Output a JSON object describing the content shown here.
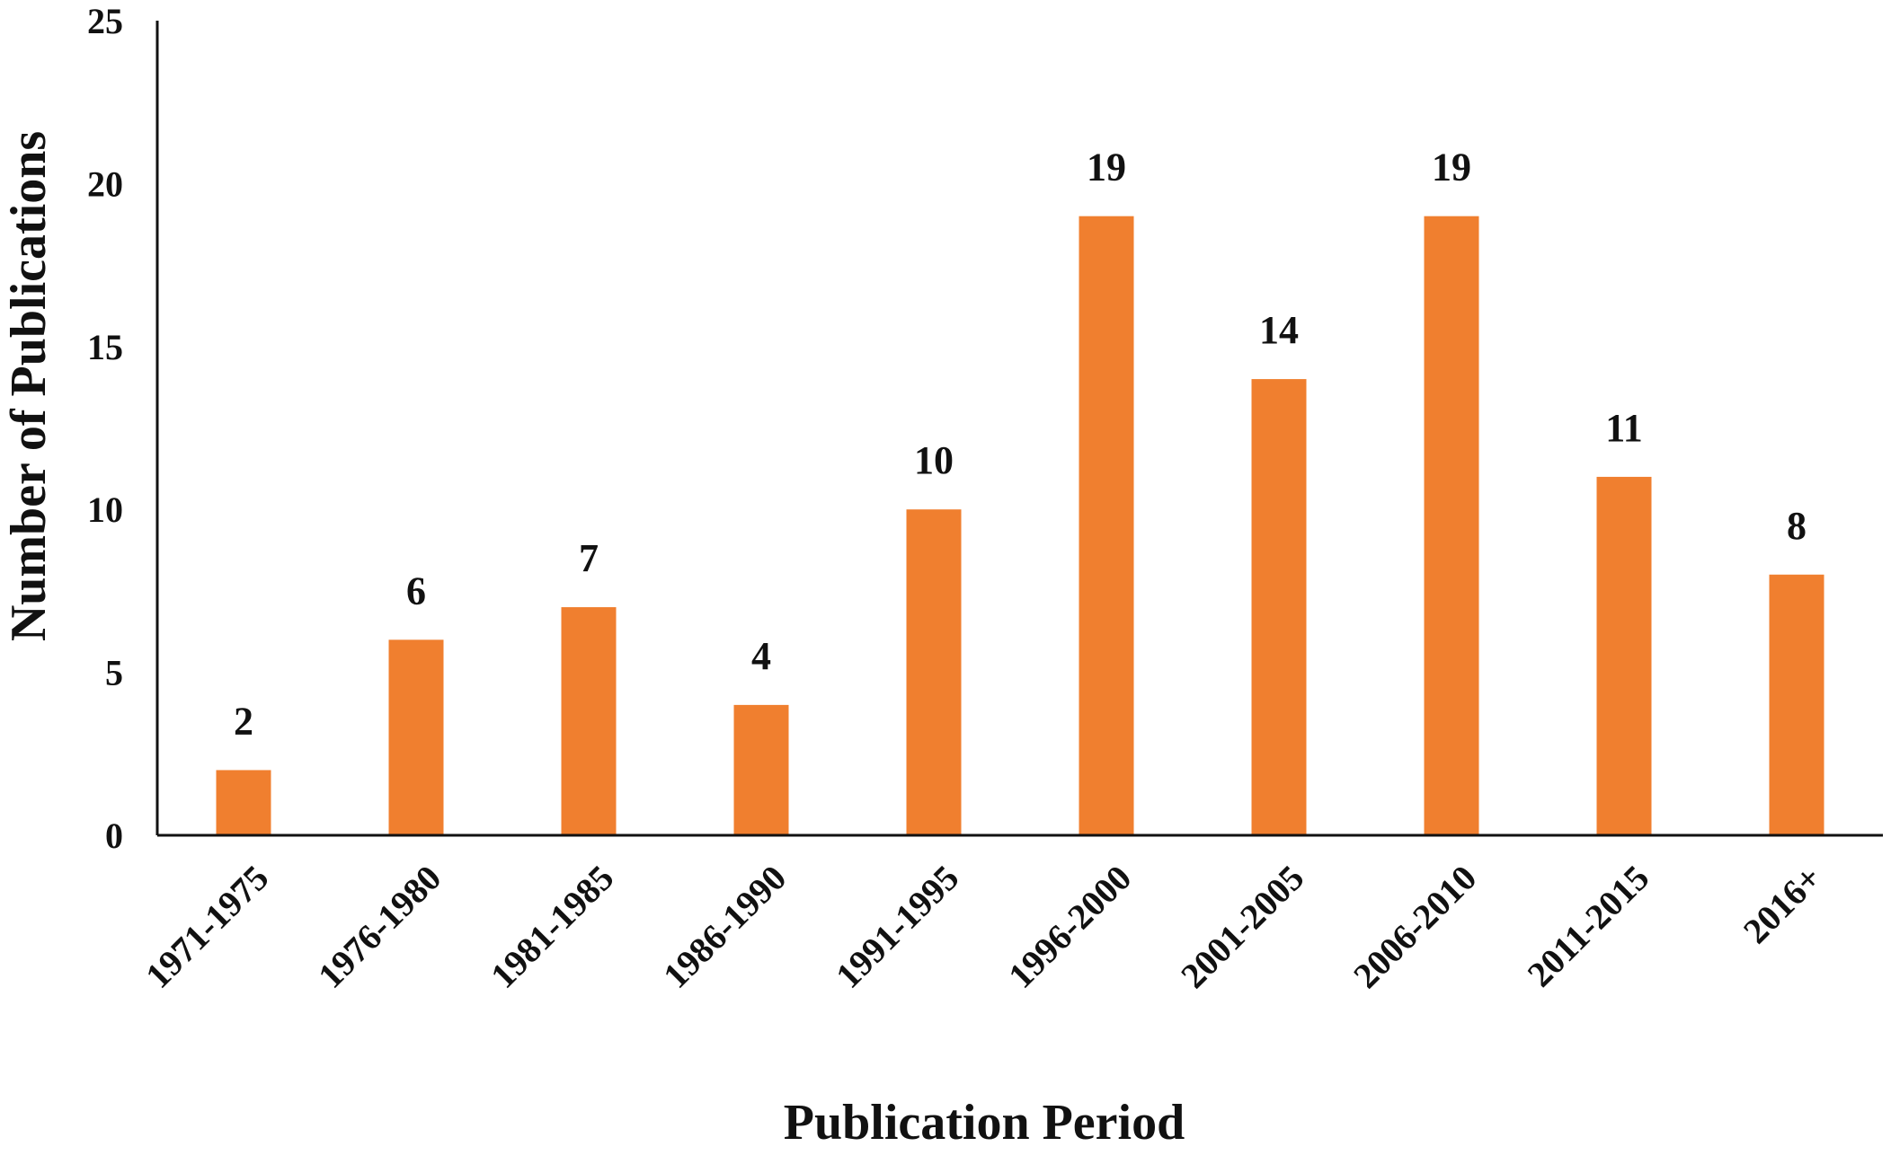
{
  "chart_data": {
    "type": "bar",
    "title": "",
    "xlabel": "Publication Period",
    "ylabel": "Number of Publications",
    "categories": [
      "1971-1975",
      "1976-1980",
      "1981-1985",
      "1986-1990",
      "1991-1995",
      "1996-2000",
      "2001-2005",
      "2006-2010",
      "2011-2015",
      "2016+"
    ],
    "values": [
      2,
      6,
      7,
      4,
      10,
      19,
      14,
      19,
      11,
      8
    ],
    "ylim": [
      0,
      25
    ],
    "yticks": [
      0,
      5,
      10,
      15,
      20,
      25
    ],
    "bar_color": "#F07F2F",
    "data_labels": true,
    "grid": false,
    "legend": "none"
  }
}
